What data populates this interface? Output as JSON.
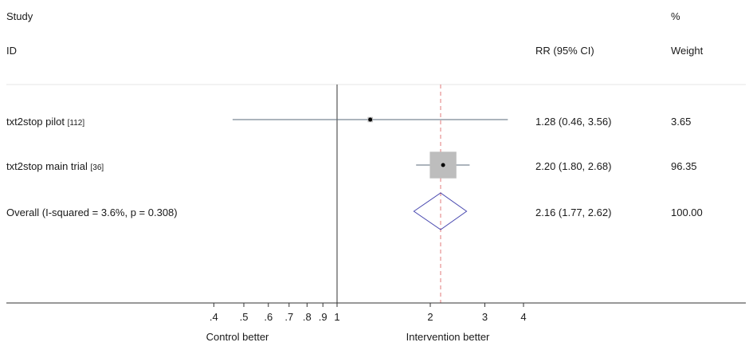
{
  "chart_data": {
    "type": "forest",
    "headers": {
      "study_line1": "Study",
      "study_line2": "ID",
      "effect": "RR (95% CI)",
      "weight_line1": "%",
      "weight_line2": "Weight"
    },
    "studies": [
      {
        "name": "txt2stop pilot",
        "ref": "[112]",
        "rr": 1.28,
        "ci_low": 0.46,
        "ci_high": 3.56,
        "rr_text": "1.28 (0.46, 3.56)",
        "weight": 3.65,
        "weight_text": "3.65"
      },
      {
        "name": "txt2stop main trial",
        "ref": "[36]",
        "rr": 2.2,
        "ci_low": 1.8,
        "ci_high": 2.68,
        "rr_text": "2.20 (1.80, 2.68)",
        "weight": 96.35,
        "weight_text": "96.35"
      }
    ],
    "overall": {
      "label": "Overall  (I-squared = 3.6%, p = 0.308)",
      "rr": 2.16,
      "ci_low": 1.77,
      "ci_high": 2.62,
      "rr_text": "2.16 (1.77, 2.62)",
      "weight_text": "100.00"
    },
    "x_scale": "log",
    "x_ticks": [
      {
        "value": 0.4,
        "label": ".4"
      },
      {
        "value": 0.5,
        "label": ".5"
      },
      {
        "value": 0.6,
        "label": ".6"
      },
      {
        "value": 0.7,
        "label": ".7"
      },
      {
        "value": 0.8,
        "label": ".8"
      },
      {
        "value": 0.9,
        "label": ".9"
      },
      {
        "value": 1,
        "label": "1"
      },
      {
        "value": 2,
        "label": "2"
      },
      {
        "value": 3,
        "label": "3"
      },
      {
        "value": 4,
        "label": "4"
      }
    ],
    "null_line": 1,
    "direction_labels": {
      "left": "Control better",
      "right": "Intervention better"
    },
    "colors": {
      "ci_line": "#5a6a78",
      "box": "#bdbdbd",
      "diamond": "#4a4ab0",
      "overall_line": "#e07a7a",
      "axis": "#333333"
    }
  }
}
